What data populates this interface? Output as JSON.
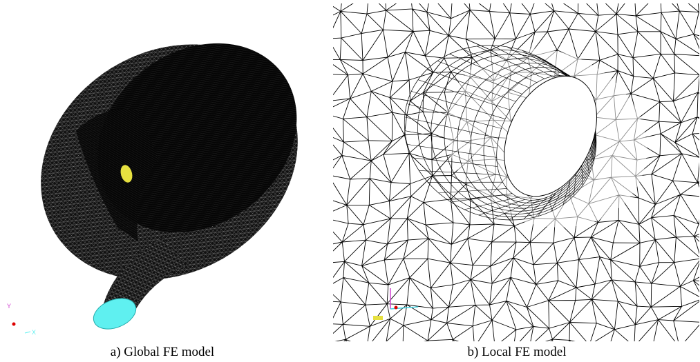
{
  "figure": {
    "panels": [
      {
        "caption": "a) Global FE model",
        "triad": {
          "y": "Y",
          "x": "X"
        }
      },
      {
        "caption": "b) Local FE model"
      }
    ]
  }
}
